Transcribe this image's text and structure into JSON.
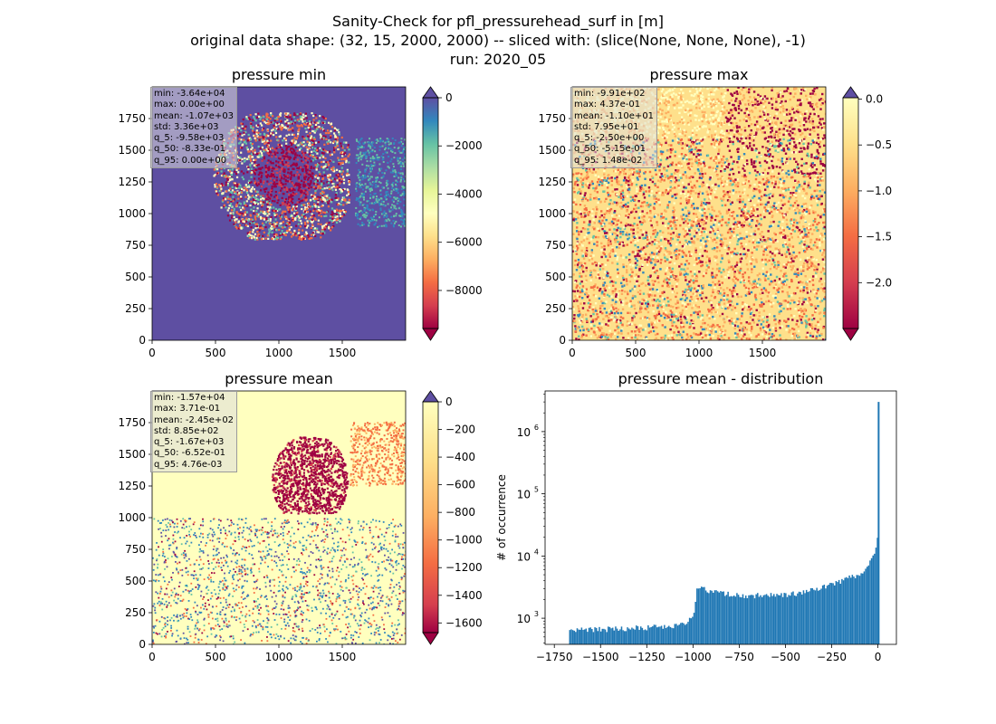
{
  "suptitle": [
    "Sanity-Check for pfl_pressurehead_surf in [m]",
    "original data shape: (32, 15, 2000, 2000) -- sliced with: (slice(None, None, None), -1)",
    "run: 2020_05"
  ],
  "chart_data": [
    {
      "type": "heatmap",
      "title": "pressure min",
      "colormap": "Spectral",
      "clim": [
        -9580,
        0
      ],
      "colorbar_ticks": [
        0,
        -2000,
        -4000,
        -6000,
        -8000
      ],
      "x_ticks": [
        0,
        500,
        1000,
        1500
      ],
      "y_ticks": [
        0,
        250,
        500,
        750,
        1000,
        1250,
        1500,
        1750
      ],
      "xlim": [
        0,
        2000
      ],
      "ylim": [
        0,
        2000
      ],
      "colorbar_extend": "both",
      "stats": [
        "min: -3.64e+04",
        "max: 0.00e+00",
        "mean: -1.07e+03",
        "std: 3.36e+03",
        "q_5: -9.58e+03",
        "q_50: -8.33e-01",
        "q_95: 0.00e+00"
      ]
    },
    {
      "type": "heatmap",
      "title": "pressure max",
      "colormap": "Spectral",
      "clim": [
        -2.5,
        0.0148
      ],
      "colorbar_ticks": [
        "0.0",
        "−0.5",
        "−1.0",
        "−1.5",
        "−2.0"
      ],
      "colorbar_tick_values": [
        0.0,
        -0.5,
        -1.0,
        -1.5,
        -2.0
      ],
      "x_ticks": [
        0,
        500,
        1000,
        1500
      ],
      "y_ticks": [
        0,
        250,
        500,
        750,
        1000,
        1250,
        1500,
        1750
      ],
      "xlim": [
        0,
        2000
      ],
      "ylim": [
        0,
        2000
      ],
      "colorbar_extend": "both",
      "stats": [
        "min: -9.91e+02",
        "max: 4.37e-01",
        "mean: -1.10e+01",
        "std: 7.95e+01",
        "q_5: -2.50e+00",
        "q_50: -5.15e-01",
        "q_95: 1.48e-02"
      ]
    },
    {
      "type": "heatmap",
      "title": "pressure mean",
      "colormap": "Spectral",
      "clim": [
        -1670,
        0.00476
      ],
      "colorbar_ticks": [
        0,
        -200,
        -400,
        -600,
        -800,
        -1000,
        -1200,
        -1400,
        -1600
      ],
      "x_ticks": [
        0,
        500,
        1000,
        1500
      ],
      "y_ticks": [
        0,
        250,
        500,
        750,
        1000,
        1250,
        1500,
        1750
      ],
      "xlim": [
        0,
        2000
      ],
      "ylim": [
        0,
        2000
      ],
      "colorbar_extend": "both",
      "stats": [
        "min: -1.57e+04",
        "max: 3.71e-01",
        "mean: -2.45e+02",
        "std: 8.85e+02",
        "q_5: -1.67e+03",
        "q_50: -6.52e-01",
        "q_95: 4.76e-03"
      ]
    },
    {
      "type": "bar",
      "title": "pressure mean - distribution",
      "ylabel": "# of occurrence",
      "yscale": "log",
      "xlim": [
        -1800,
        100
      ],
      "ylim": [
        380,
        4500000
      ],
      "x_ticks": [
        -1750,
        -1500,
        -1250,
        -1000,
        -750,
        -500,
        -250,
        0
      ],
      "x_tick_labels": [
        "−1750",
        "−1500",
        "−1250",
        "−1000",
        "−750",
        "−500",
        "−250",
        "0"
      ],
      "y_ticks": [
        1000,
        10000,
        100000,
        1000000
      ],
      "y_tick_labels": [
        "10",
        "10",
        "10",
        "10"
      ],
      "y_tick_exponents": [
        "3",
        "4",
        "5",
        "6"
      ],
      "color": "#1f77b4",
      "bins": [
        {
          "x": -1670,
          "count": 620
        },
        {
          "x": -1600,
          "count": 650
        },
        {
          "x": -1500,
          "count": 660
        },
        {
          "x": -1400,
          "count": 680
        },
        {
          "x": -1300,
          "count": 700
        },
        {
          "x": -1200,
          "count": 720
        },
        {
          "x": -1100,
          "count": 760
        },
        {
          "x": -1030,
          "count": 850
        },
        {
          "x": -1000,
          "count": 1200
        },
        {
          "x": -980,
          "count": 3300
        },
        {
          "x": -950,
          "count": 3000
        },
        {
          "x": -900,
          "count": 2700
        },
        {
          "x": -800,
          "count": 2400
        },
        {
          "x": -700,
          "count": 2300
        },
        {
          "x": -600,
          "count": 2350
        },
        {
          "x": -500,
          "count": 2400
        },
        {
          "x": -400,
          "count": 2600
        },
        {
          "x": -300,
          "count": 3200
        },
        {
          "x": -200,
          "count": 4000
        },
        {
          "x": -100,
          "count": 5200
        },
        {
          "x": -50,
          "count": 7500
        },
        {
          "x": -20,
          "count": 12000
        },
        {
          "x": -8,
          "count": 19000
        },
        {
          "x": 0,
          "count": 3000000
        }
      ]
    }
  ]
}
